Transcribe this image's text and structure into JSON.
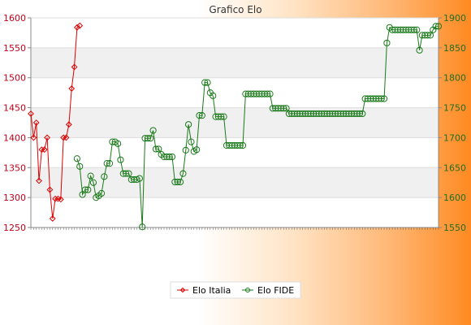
{
  "chart_data": {
    "type": "line",
    "title": "Grafico Elo",
    "grid": true,
    "legend_position": "bottom-center",
    "y_left": {
      "min": 1250,
      "max": 1600,
      "ticks": [
        "1250",
        "1300",
        "1350",
        "1400",
        "1450",
        "1500",
        "1550",
        "1600"
      ],
      "color": "#c0001a"
    },
    "y_right": {
      "min": 1550,
      "max": 1900,
      "ticks": [
        "1550",
        "1600",
        "1650",
        "1700",
        "1750",
        "1800",
        "1850",
        "1900"
      ],
      "color": "#1f6e1f"
    },
    "series": [
      {
        "name": "Elo Italia",
        "axis": "left",
        "color": "#dd0000",
        "marker": "diamond",
        "values": [
          1440,
          1400,
          1425,
          1328,
          1380,
          1380,
          1400,
          1313,
          1265,
          1298,
          1298,
          1297,
          1400,
          1400,
          1422,
          1482,
          1518,
          1584,
          1587
        ]
      },
      {
        "name": "Elo FIDE",
        "axis": "right",
        "color": "#1a7a1a",
        "marker": "circle",
        "offset": 17,
        "values": [
          1665,
          1652,
          1605,
          1613,
          1613,
          1636,
          1625,
          1600,
          1603,
          1607,
          1635,
          1657,
          1657,
          1693,
          1693,
          1690,
          1663,
          1640,
          1640,
          1640,
          1630,
          1630,
          1630,
          1632,
          1551,
          1699,
          1699,
          1699,
          1712,
          1681,
          1681,
          1672,
          1668,
          1668,
          1668,
          1668,
          1626,
          1626,
          1626,
          1640,
          1679,
          1722,
          1693,
          1677,
          1680,
          1737,
          1737,
          1792,
          1792,
          1775,
          1770,
          1735,
          1735,
          1735,
          1735,
          1687,
          1687,
          1687,
          1687,
          1687,
          1687,
          1687,
          1773,
          1773,
          1773,
          1773,
          1773,
          1773,
          1773,
          1773,
          1773,
          1773,
          1749,
          1749,
          1749,
          1749,
          1749,
          1749,
          1740,
          1740,
          1740,
          1740,
          1740,
          1740,
          1740,
          1740,
          1740,
          1740,
          1740,
          1740,
          1740,
          1740,
          1740,
          1740,
          1740,
          1740,
          1740,
          1740,
          1740,
          1740,
          1740,
          1740,
          1740,
          1740,
          1740,
          1740,
          1765,
          1765,
          1765,
          1765,
          1765,
          1765,
          1765,
          1765,
          1858,
          1884,
          1880,
          1880,
          1880,
          1880,
          1880,
          1880,
          1880,
          1880,
          1880,
          1880,
          1846,
          1871,
          1871,
          1871,
          1871,
          1880,
          1886,
          1886
        ]
      }
    ]
  }
}
